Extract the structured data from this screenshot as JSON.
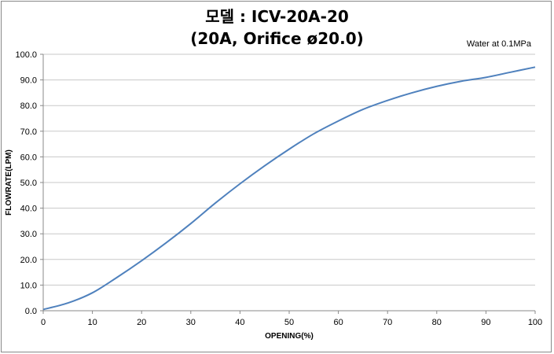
{
  "chart_data": {
    "type": "line",
    "title": "모델 : ICV-20A-20",
    "subtitle": "(20A, Orifice ø20.0)",
    "annotation": "Water at 0.1MPa",
    "xlabel": "OPENING(%)",
    "ylabel": "FLOWRATE(LPM)",
    "xlim": [
      0,
      100
    ],
    "ylim": [
      0,
      100
    ],
    "x_ticks": [
      "0",
      "10",
      "20",
      "30",
      "40",
      "50",
      "60",
      "70",
      "80",
      "90",
      "100"
    ],
    "y_ticks": [
      "0.0",
      "10.0",
      "20.0",
      "30.0",
      "40.0",
      "50.0",
      "60.0",
      "70.0",
      "80.0",
      "90.0",
      "100.0"
    ],
    "grid": true,
    "legend": "none",
    "series": [
      {
        "color": "#4f81bd",
        "x": [
          0,
          5,
          10,
          15,
          20,
          25,
          30,
          35,
          40,
          45,
          50,
          55,
          60,
          65,
          70,
          75,
          80,
          85,
          90,
          95,
          100
        ],
        "y": [
          0.5,
          3,
          7,
          13,
          19.5,
          26.5,
          34,
          42,
          49.5,
          56.5,
          63,
          69,
          74,
          78.5,
          82,
          85,
          87.5,
          89.5,
          91,
          93,
          95
        ]
      }
    ]
  }
}
